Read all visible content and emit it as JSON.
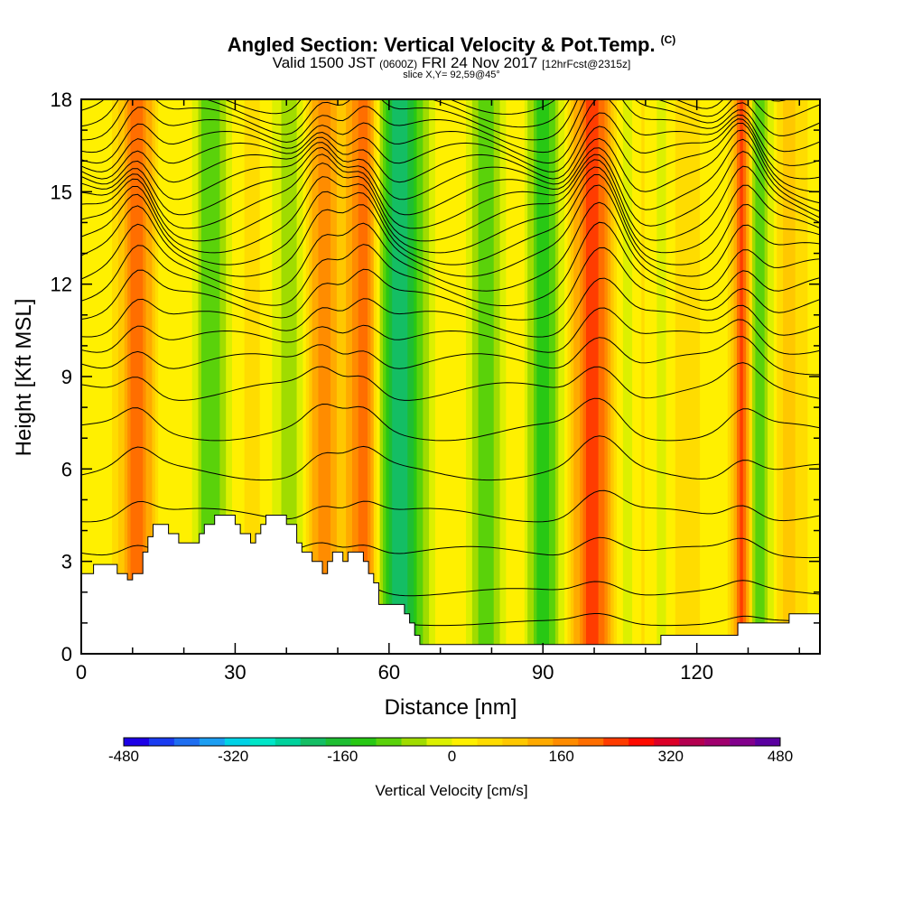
{
  "header": {
    "title": "Angled Section: Vertical Velocity & Pot.Temp.",
    "title_tag": "(C)",
    "subtitle_a": "Valid 1500 JST",
    "subtitle_b": "(0600Z)",
    "subtitle_c": "FRI 24 Nov 2017",
    "subtitle_d": "[12hrFcst@2315z]",
    "slice": "slice X,Y= 92,59@45°"
  },
  "chart_data": {
    "type": "heatmap",
    "xlabel": "Distance [nm]",
    "ylabel": "Height [Kft MSL]",
    "xlim": [
      0,
      144
    ],
    "ylim": [
      0,
      18
    ],
    "x_ticks": [
      0,
      30,
      60,
      90,
      120
    ],
    "y_ticks": [
      0,
      3,
      6,
      9,
      12,
      15,
      18
    ],
    "colorbar": {
      "label": "Vertical Velocity [cm/s]",
      "tick_labels": [
        -480,
        -320,
        -160,
        0,
        160,
        320,
        480
      ],
      "min": -480,
      "max": 480,
      "colors": [
        "#1c00e6",
        "#1a3cf0",
        "#1e6ef0",
        "#1c9ef2",
        "#00d2e6",
        "#00e6c8",
        "#00d29c",
        "#14be64",
        "#1ebe32",
        "#28c814",
        "#5ad20a",
        "#a0dc00",
        "#dcf000",
        "#fff000",
        "#ffdc00",
        "#ffc800",
        "#ffaa00",
        "#ff8c00",
        "#ff6e00",
        "#ff3c00",
        "#ff0a00",
        "#dc0028",
        "#b40050",
        "#a0006e",
        "#82008c",
        "#5a00a0"
      ]
    },
    "updraft_bands": [
      {
        "x": 11,
        "strength": 190
      },
      {
        "x": 20,
        "strength": 40
      },
      {
        "x": 33,
        "strength": 30
      },
      {
        "x": 47,
        "strength": 150
      },
      {
        "x": 55,
        "strength": 190
      },
      {
        "x": 73,
        "strength": 20
      },
      {
        "x": 85,
        "strength": 40
      },
      {
        "x": 99,
        "strength": 190
      },
      {
        "x": 103,
        "strength": 110
      },
      {
        "x": 109,
        "strength": 80
      },
      {
        "x": 117,
        "strength": 60
      },
      {
        "x": 129,
        "strength": 320
      },
      {
        "x": 138,
        "strength": 70
      }
    ],
    "downdraft_bands": [
      {
        "x": 17,
        "strength": -40
      },
      {
        "x": 25,
        "strength": -120
      },
      {
        "x": 41,
        "strength": -70
      },
      {
        "x": 61,
        "strength": -200
      },
      {
        "x": 65,
        "strength": -100
      },
      {
        "x": 79,
        "strength": -110
      },
      {
        "x": 90,
        "strength": -150
      },
      {
        "x": 106,
        "strength": -110
      },
      {
        "x": 113,
        "strength": -60
      },
      {
        "x": 131,
        "strength": -160
      }
    ],
    "terrain_kft": [
      [
        0,
        2.6
      ],
      [
        2.4,
        2.6
      ],
      [
        2.4,
        2.9
      ],
      [
        7,
        2.9
      ],
      [
        7,
        2.6
      ],
      [
        9,
        2.6
      ],
      [
        9,
        2.4
      ],
      [
        10,
        2.4
      ],
      [
        10,
        2.6
      ],
      [
        12,
        2.6
      ],
      [
        12,
        3.3
      ],
      [
        13,
        3.3
      ],
      [
        13,
        3.8
      ],
      [
        14,
        3.8
      ],
      [
        14,
        4.2
      ],
      [
        17,
        4.2
      ],
      [
        17,
        3.9
      ],
      [
        19,
        3.9
      ],
      [
        19,
        3.6
      ],
      [
        23,
        3.6
      ],
      [
        23,
        3.9
      ],
      [
        24,
        3.9
      ],
      [
        24,
        4.2
      ],
      [
        26,
        4.2
      ],
      [
        26,
        4.5
      ],
      [
        30,
        4.5
      ],
      [
        30,
        4.2
      ],
      [
        31,
        4.2
      ],
      [
        31,
        3.9
      ],
      [
        33,
        3.9
      ],
      [
        33,
        3.6
      ],
      [
        34,
        3.6
      ],
      [
        34,
        3.9
      ],
      [
        35,
        3.9
      ],
      [
        35,
        4.2
      ],
      [
        36,
        4.2
      ],
      [
        36,
        4.5
      ],
      [
        40,
        4.5
      ],
      [
        40,
        4.2
      ],
      [
        42,
        4.2
      ],
      [
        42,
        3.6
      ],
      [
        43,
        3.6
      ],
      [
        43,
        3.3
      ],
      [
        45,
        3.3
      ],
      [
        45,
        3.0
      ],
      [
        47,
        3.0
      ],
      [
        47,
        2.6
      ],
      [
        48,
        2.6
      ],
      [
        48,
        3.0
      ],
      [
        49,
        3.0
      ],
      [
        49,
        3.3
      ],
      [
        51,
        3.3
      ],
      [
        51,
        3.0
      ],
      [
        52,
        3.0
      ],
      [
        52,
        3.3
      ],
      [
        55,
        3.3
      ],
      [
        55,
        3.0
      ],
      [
        56,
        3.0
      ],
      [
        56,
        2.6
      ],
      [
        57,
        2.6
      ],
      [
        57,
        2.3
      ],
      [
        58,
        2.3
      ],
      [
        58,
        1.6
      ],
      [
        63,
        1.6
      ],
      [
        63,
        1.3
      ],
      [
        64,
        1.3
      ],
      [
        64,
        1.0
      ],
      [
        65,
        1.0
      ],
      [
        65,
        0.6
      ],
      [
        66,
        0.6
      ],
      [
        66,
        0.3
      ],
      [
        113,
        0.3
      ],
      [
        113,
        0.6
      ],
      [
        128,
        0.6
      ],
      [
        128,
        1.0
      ],
      [
        138,
        1.0
      ],
      [
        138,
        1.3
      ],
      [
        144,
        1.3
      ]
    ],
    "theta_levels_kft": [
      {
        "base": 0.2,
        "amp": 0.0
      },
      {
        "base": 1.0,
        "amp": 0.08
      },
      {
        "base": 2.0,
        "amp": 0.12
      },
      {
        "base": 3.3,
        "amp": 0.18
      },
      {
        "base": 4.5,
        "amp": 0.22
      },
      {
        "base": 5.9,
        "amp": 0.26
      },
      {
        "base": 7.2,
        "amp": 0.28
      },
      {
        "base": 8.5,
        "amp": 0.3
      },
      {
        "base": 9.4,
        "amp": 0.34
      },
      {
        "base": 10.1,
        "amp": 0.38
      },
      {
        "base": 10.7,
        "amp": 0.42
      },
      {
        "base": 11.3,
        "amp": 0.46
      },
      {
        "base": 11.8,
        "amp": 0.5
      },
      {
        "base": 12.3,
        "amp": 0.52
      },
      {
        "base": 12.8,
        "amp": 0.55
      },
      {
        "base": 13.2,
        "amp": 0.57
      },
      {
        "base": 13.6,
        "amp": 0.58
      },
      {
        "base": 14.0,
        "amp": 0.6
      },
      {
        "base": 14.4,
        "amp": 0.6
      },
      {
        "base": 14.8,
        "amp": 0.6
      },
      {
        "base": 15.2,
        "amp": 0.6
      },
      {
        "base": 15.6,
        "amp": 0.6
      },
      {
        "base": 16.0,
        "amp": 0.58
      },
      {
        "base": 16.4,
        "amp": 0.56
      },
      {
        "base": 16.8,
        "amp": 0.54
      },
      {
        "base": 17.2,
        "amp": 0.52
      },
      {
        "base": 17.6,
        "amp": 0.5
      },
      {
        "base": 18.0,
        "amp": 0.48
      }
    ]
  }
}
